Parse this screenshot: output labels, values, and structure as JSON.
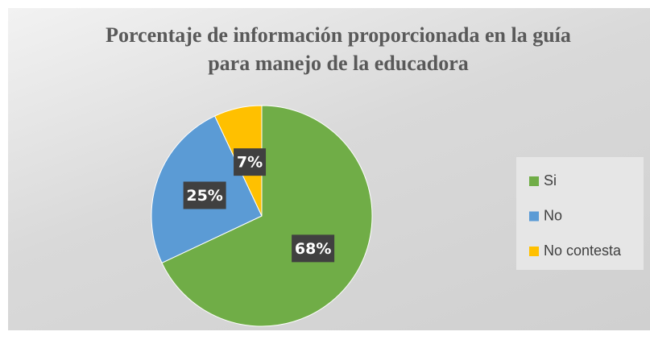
{
  "chart_data": {
    "type": "pie",
    "title": "Porcentaje de información proporcionada en la guía para manejo de la educadora",
    "categories": [
      "Si",
      "No",
      "No contesta"
    ],
    "values": [
      68,
      25,
      7
    ],
    "value_labels": [
      "68%",
      "25%",
      "7%"
    ],
    "colors": [
      "#70ad47",
      "#5b9bd5",
      "#ffc000"
    ],
    "legend": "right"
  }
}
